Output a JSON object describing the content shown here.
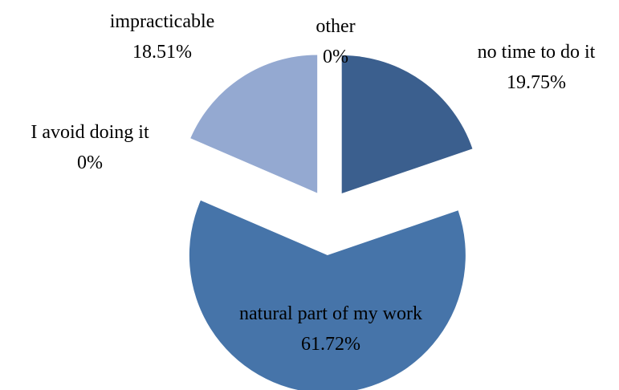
{
  "chart_data": {
    "type": "pie",
    "categories": [
      "no time to do it",
      "natural part of my work",
      "I avoid doing it",
      "impracticable",
      "other"
    ],
    "values": [
      19.75,
      61.72,
      0,
      18.51,
      0
    ],
    "value_labels": [
      "19.75%",
      "61.72%",
      "0%",
      "18.51%",
      "0%"
    ],
    "colors": [
      "#3b5f8e",
      "#4674a9",
      "#7f99c6",
      "#94a9d1",
      "#b0c0de"
    ]
  }
}
